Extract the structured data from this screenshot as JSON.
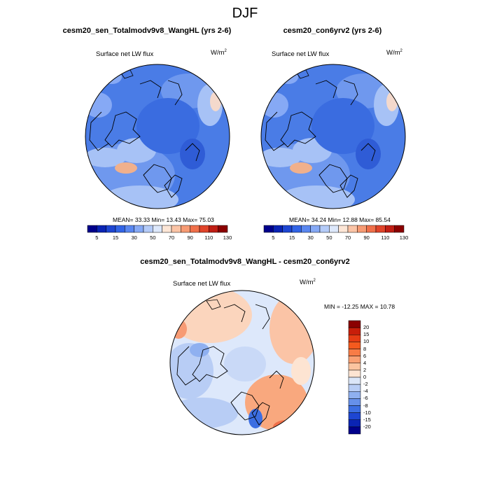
{
  "figure": {
    "title": "DJF"
  },
  "panels": [
    {
      "title": "cesm20_sen_Totalmodv9v8_WangHL (yrs 2-6)",
      "variable": "Surface net LW flux",
      "units_base": "W/m",
      "units_exp": "2",
      "stats": "MEAN=  33.33  Min=  13.43  Max=  75.03"
    },
    {
      "title": "cesm20_con6yrv2 (yrs 2-6)",
      "variable": "Surface net LW flux",
      "units_base": "W/m",
      "units_exp": "2",
      "stats": "MEAN=  34.24  Min=  12.88  Max=  85.54"
    },
    {
      "title": "cesm20_sen_Totalmodv9v8_WangHL - cesm20_con6yrv2",
      "variable": "Surface net LW flux",
      "units_base": "W/m",
      "units_exp": "2",
      "stats": "MIN = -12.25 MAX =  10.78"
    }
  ],
  "colorbar_abs": {
    "labels": [
      "5",
      "15",
      "30",
      "50",
      "70",
      "90",
      "110",
      "130"
    ],
    "colors": [
      "#00008b",
      "#0a24b4",
      "#1e46d2",
      "#3264e6",
      "#5a87f0",
      "#86a9f5",
      "#b4cbf8",
      "#dde8fb",
      "#fde6d6",
      "#fbc4a6",
      "#f79b74",
      "#f0704a",
      "#e0442a",
      "#c01e14",
      "#8b0000"
    ]
  },
  "colorbar_diff": {
    "labels": [
      "20",
      "15",
      "10",
      "8",
      "6",
      "4",
      "2",
      "0",
      "-2",
      "-4",
      "-6",
      "-8",
      "-10",
      "-15",
      "-20"
    ],
    "colors": [
      "#8b0000",
      "#c81e0a",
      "#e63c14",
      "#f55a1e",
      "#f87c46",
      "#f9a073",
      "#fbc4a0",
      "#fde4d2",
      "#dbe6f8",
      "#b8cdf5",
      "#8fb0f0",
      "#6690ea",
      "#3c6ee2",
      "#1e46d2",
      "#0a24b4",
      "#00008b"
    ]
  }
}
